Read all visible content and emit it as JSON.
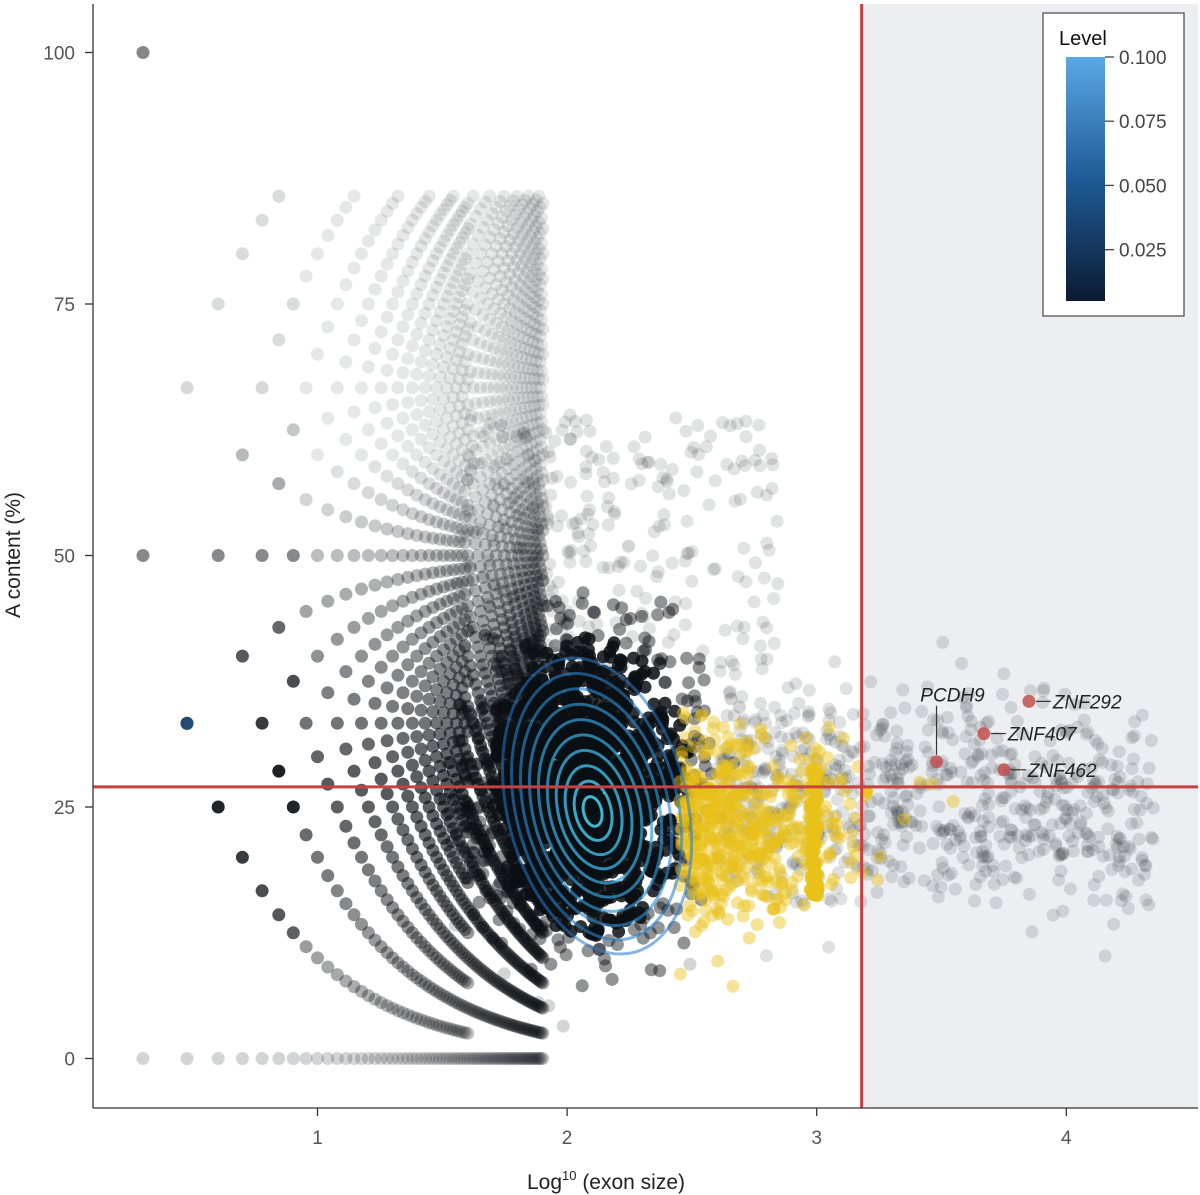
{
  "chart_data": {
    "type": "scatter",
    "title": "",
    "xlabel": "Log",
    "xlabel_sup": "10",
    "xlabel_rest": " (exon size)",
    "ylabel": "A content (%)",
    "xlim": [
      0.1,
      4.55
    ],
    "ylim": [
      -5,
      105
    ],
    "x_ticks": [
      "1",
      "2",
      "3",
      "4"
    ],
    "y_ticks": [
      "0",
      "25",
      "50",
      "75",
      "100"
    ],
    "x_tick_values": [
      1,
      2,
      3,
      4
    ],
    "y_tick_values": [
      0,
      25,
      50,
      75,
      100
    ],
    "threshold_x": 3.18,
    "threshold_y": 27,
    "shaded_region": "x > 3.18",
    "colors": {
      "points_dark": "#0a0f14",
      "points_highlight": "#e8c21a",
      "threshold_line": "#c8403f",
      "contour": "#2f7fc1",
      "shade": "#eceef2",
      "gene_point": "#c0504d"
    },
    "genes": [
      {
        "name": "PCDH9",
        "x": 3.48,
        "y": 29.5
      },
      {
        "name": "ZNF292",
        "x": 3.85,
        "y": 35.5
      },
      {
        "name": "ZNF407",
        "x": 3.67,
        "y": 32.3
      },
      {
        "name": "ZNF462",
        "x": 3.75,
        "y": 28.7
      }
    ],
    "legend": {
      "title": "Level",
      "placement": "top-right",
      "ticks": [
        "0.100",
        "0.075",
        "0.050",
        "0.025"
      ],
      "tick_values": [
        0.1,
        0.075,
        0.05,
        0.025
      ],
      "range": [
        0.005,
        0.1
      ]
    },
    "density_peak": {
      "x": 2.12,
      "y": 24.5
    },
    "contour_levels": 10
  }
}
